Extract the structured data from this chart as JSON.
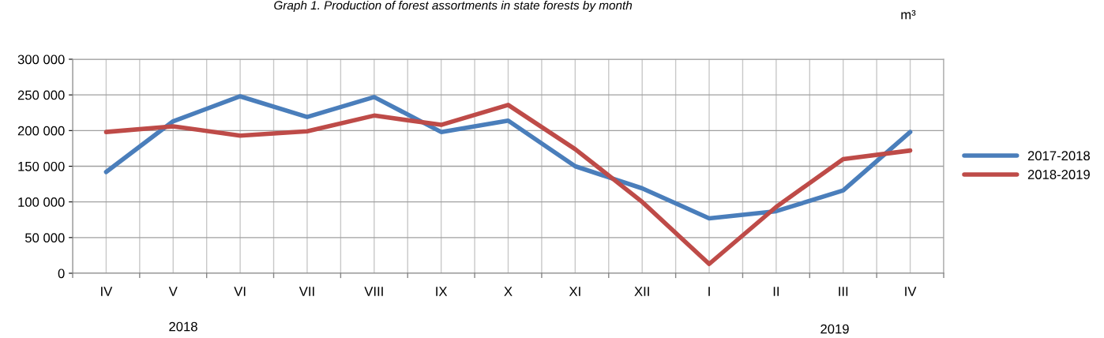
{
  "chart_data": {
    "type": "line",
    "title": "Graph 1. Production of forest assortments in state forests by month",
    "categories": [
      "IV",
      "V",
      "VI",
      "VII",
      "VIII",
      "IX",
      "X",
      "XI",
      "XII",
      "I",
      "II",
      "III",
      "IV"
    ],
    "series": [
      {
        "name": "2017-2018",
        "color": "#4a7ebb",
        "values": [
          142000,
          213000,
          248000,
          219000,
          247000,
          198000,
          214000,
          150000,
          119000,
          77000,
          87000,
          116000,
          198000
        ]
      },
      {
        "name": "2018-2019",
        "color": "#be4b48",
        "values": [
          198000,
          206000,
          193000,
          199000,
          221000,
          208000,
          236000,
          174000,
          100000,
          13000,
          93000,
          160000,
          172000
        ]
      }
    ],
    "ylim": [
      0,
      300000
    ],
    "yticks": [
      {
        "value": 0,
        "label": "0"
      },
      {
        "value": 50000,
        "label": "50 000"
      },
      {
        "value": 100000,
        "label": "100 000"
      },
      {
        "value": 150000,
        "label": "150 000"
      },
      {
        "value": 200000,
        "label": "200 000"
      },
      {
        "value": 250000,
        "label": "250 000"
      },
      {
        "value": 300000,
        "label": "300 000"
      }
    ],
    "annotations": [
      "2018",
      "2019",
      "m³"
    ],
    "grid": true,
    "legend": "right",
    "marker": "none",
    "line_style": "solid"
  }
}
